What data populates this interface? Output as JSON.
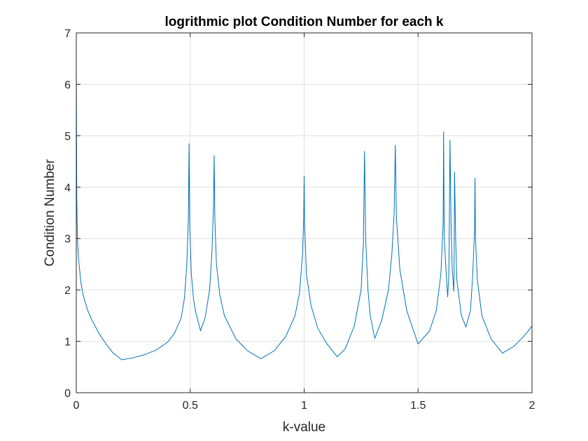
{
  "chart_data": {
    "type": "line",
    "title": "logrithmic plot Condition Number for each k",
    "xlabel": "k-value",
    "ylabel": "Condition Number",
    "xlim": [
      0,
      2
    ],
    "ylim": [
      0,
      7
    ],
    "x_ticks": [
      0,
      0.5,
      1,
      1.5,
      2
    ],
    "x_tick_labels": [
      "0",
      "0.5",
      "1",
      "1.5",
      "2"
    ],
    "y_ticks": [
      0,
      1,
      2,
      3,
      4,
      5,
      6,
      7
    ],
    "y_tick_labels": [
      "0",
      "1",
      "2",
      "3",
      "4",
      "5",
      "6",
      "7"
    ],
    "grid": true,
    "box": true,
    "series": [
      {
        "color": "#0072bd",
        "x": [
          0,
          0.002,
          0.005,
          0.01,
          0.02,
          0.03,
          0.05,
          0.07,
          0.1,
          0.13,
          0.16,
          0.2,
          0.25,
          0.3,
          0.35,
          0.4,
          0.43,
          0.46,
          0.475,
          0.485,
          0.492,
          0.495,
          0.498,
          0.505,
          0.515,
          0.525,
          0.545,
          0.565,
          0.585,
          0.595,
          0.602,
          0.605,
          0.608,
          0.615,
          0.63,
          0.65,
          0.7,
          0.75,
          0.81,
          0.87,
          0.92,
          0.96,
          0.98,
          0.993,
          0.998,
          1.0,
          1.002,
          1.01,
          1.03,
          1.06,
          1.1,
          1.145,
          1.18,
          1.22,
          1.25,
          1.26,
          1.265,
          1.27,
          1.28,
          1.29,
          1.31,
          1.34,
          1.37,
          1.385,
          1.395,
          1.4,
          1.405,
          1.42,
          1.45,
          1.5,
          1.55,
          1.58,
          1.6,
          1.61,
          1.612,
          1.615,
          1.625,
          1.63,
          1.635,
          1.637,
          1.64,
          1.645,
          1.65,
          1.657,
          1.658,
          1.66,
          1.665,
          1.67,
          1.69,
          1.71,
          1.73,
          1.74,
          1.748,
          1.75,
          1.752,
          1.76,
          1.78,
          1.82,
          1.87,
          1.92,
          1.96,
          1.98,
          2.0
        ],
        "y": [
          6.38,
          3.8,
          3.0,
          2.6,
          2.15,
          1.9,
          1.6,
          1.4,
          1.15,
          0.95,
          0.78,
          0.64,
          0.68,
          0.74,
          0.83,
          0.98,
          1.15,
          1.45,
          1.85,
          2.5,
          3.4,
          4.85,
          3.2,
          2.3,
          1.8,
          1.55,
          1.21,
          1.45,
          2.0,
          2.7,
          3.6,
          4.62,
          3.4,
          2.5,
          1.9,
          1.5,
          1.05,
          0.82,
          0.66,
          0.82,
          1.1,
          1.5,
          1.95,
          2.7,
          3.4,
          4.22,
          3.3,
          2.3,
          1.7,
          1.25,
          0.95,
          0.7,
          0.85,
          1.3,
          2.0,
          2.9,
          4.7,
          3.0,
          2.0,
          1.5,
          1.06,
          1.4,
          2.0,
          2.7,
          3.5,
          4.82,
          3.4,
          2.4,
          1.6,
          0.95,
          1.2,
          1.6,
          2.3,
          3.3,
          5.08,
          3.0,
          2.2,
          1.86,
          2.3,
          3.2,
          4.92,
          3.2,
          2.4,
          1.97,
          2.3,
          4.3,
          3.0,
          2.2,
          1.5,
          1.28,
          1.6,
          2.3,
          3.2,
          4.18,
          3.0,
          2.2,
          1.5,
          1.05,
          0.77,
          0.9,
          1.08,
          1.18,
          1.3
        ]
      }
    ]
  }
}
